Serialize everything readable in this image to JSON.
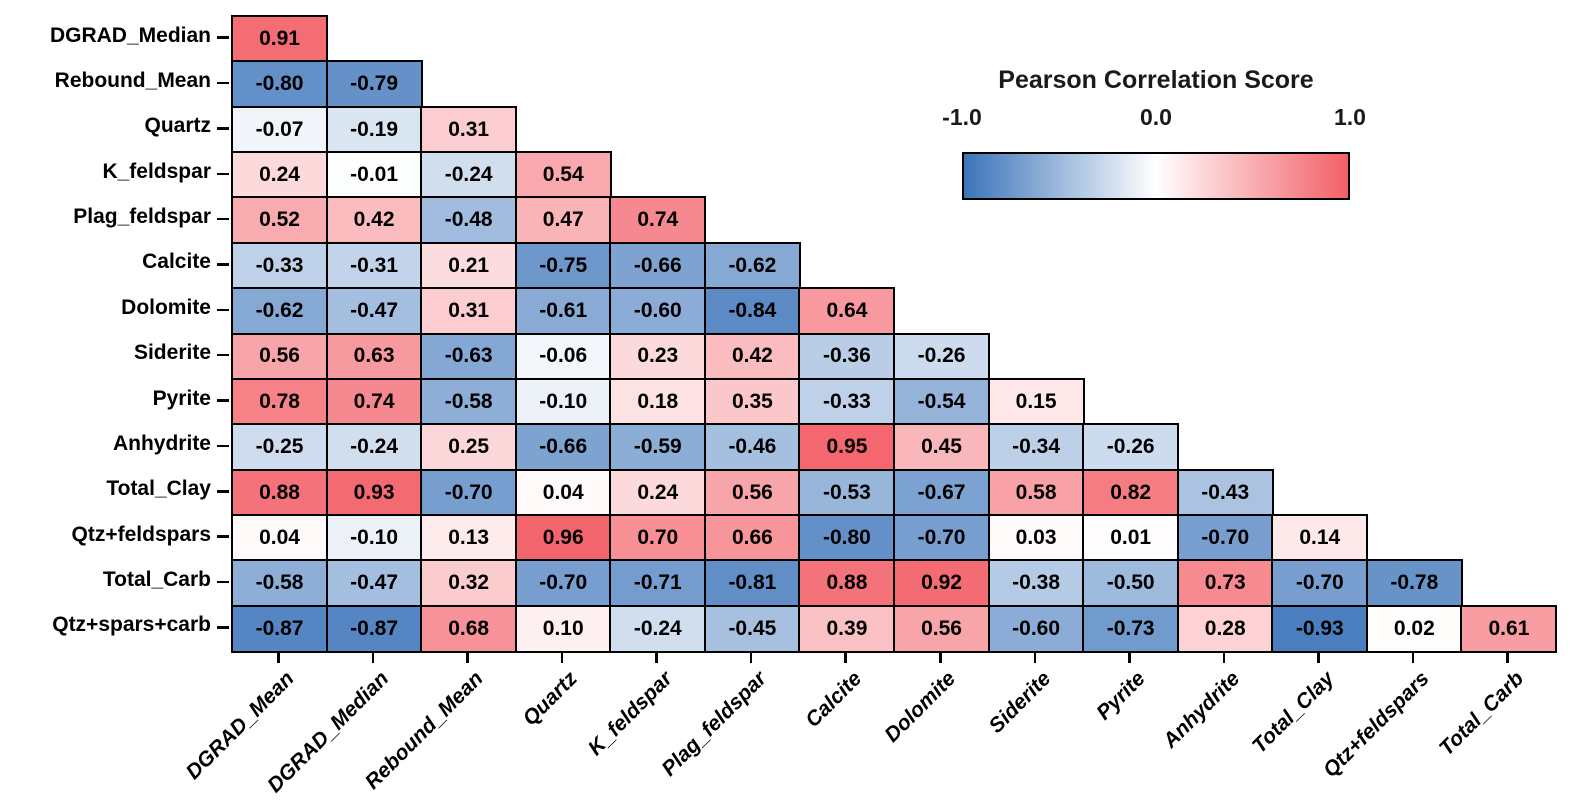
{
  "chart_data": {
    "type": "heatmap",
    "shape": "lower-triangular",
    "legend": {
      "title": "Pearson Correlation Score",
      "ticks": [
        "-1.0",
        "0.0",
        "1.0"
      ],
      "range": [
        -1.0,
        1.0
      ],
      "position": "top-right"
    },
    "x_labels": [
      "DGRAD_Mean",
      "DGRAD_Median",
      "Rebound_Mean",
      "Quartz",
      "K_feldspar",
      "Plag_feldspar",
      "Calcite",
      "Dolomite",
      "Siderite",
      "Pyrite",
      "Anhydrite",
      "Total_Clay",
      "Qtz+feldspars",
      "Total_Carb"
    ],
    "y_labels": [
      "DGRAD_Median",
      "Rebound_Mean",
      "Quartz",
      "K_feldspar",
      "Plag_feldspar",
      "Calcite",
      "Dolomite",
      "Siderite",
      "Pyrite",
      "Anhydrite",
      "Total_Clay",
      "Qtz+feldspars",
      "Total_Carb",
      "Qtz+spars+carb"
    ],
    "values": [
      [
        0.91
      ],
      [
        -0.8,
        -0.79
      ],
      [
        -0.07,
        -0.19,
        0.31
      ],
      [
        0.24,
        -0.01,
        -0.24,
        0.54
      ],
      [
        0.52,
        0.42,
        -0.48,
        0.47,
        0.74
      ],
      [
        -0.33,
        -0.31,
        0.21,
        -0.75,
        -0.66,
        -0.62
      ],
      [
        -0.62,
        -0.47,
        0.31,
        -0.61,
        -0.6,
        -0.84,
        0.64
      ],
      [
        0.56,
        0.63,
        -0.63,
        -0.06,
        0.23,
        0.42,
        -0.36,
        -0.26
      ],
      [
        0.78,
        0.74,
        -0.58,
        -0.1,
        0.18,
        0.35,
        -0.33,
        -0.54,
        0.15
      ],
      [
        -0.25,
        -0.24,
        0.25,
        -0.66,
        -0.59,
        -0.46,
        0.95,
        0.45,
        -0.34,
        -0.26
      ],
      [
        0.88,
        0.93,
        -0.7,
        0.04,
        0.24,
        0.56,
        -0.53,
        -0.67,
        0.58,
        0.82,
        -0.43
      ],
      [
        0.04,
        -0.1,
        0.13,
        0.96,
        0.7,
        0.66,
        -0.8,
        -0.7,
        0.03,
        0.01,
        -0.7,
        0.14
      ],
      [
        -0.58,
        -0.47,
        0.32,
        -0.7,
        -0.71,
        -0.81,
        0.88,
        0.92,
        -0.38,
        -0.5,
        0.73,
        -0.7,
        -0.78
      ],
      [
        -0.87,
        -0.87,
        0.68,
        0.1,
        -0.24,
        -0.45,
        0.39,
        0.56,
        -0.6,
        -0.73,
        0.28,
        -0.93,
        0.02,
        0.61
      ]
    ],
    "colors": {
      "negative_end": "#3c74ba",
      "midpoint": "#ffffff",
      "positive_end": "#f35f67",
      "cell_border": "#000000",
      "value_text": "#000000"
    }
  }
}
